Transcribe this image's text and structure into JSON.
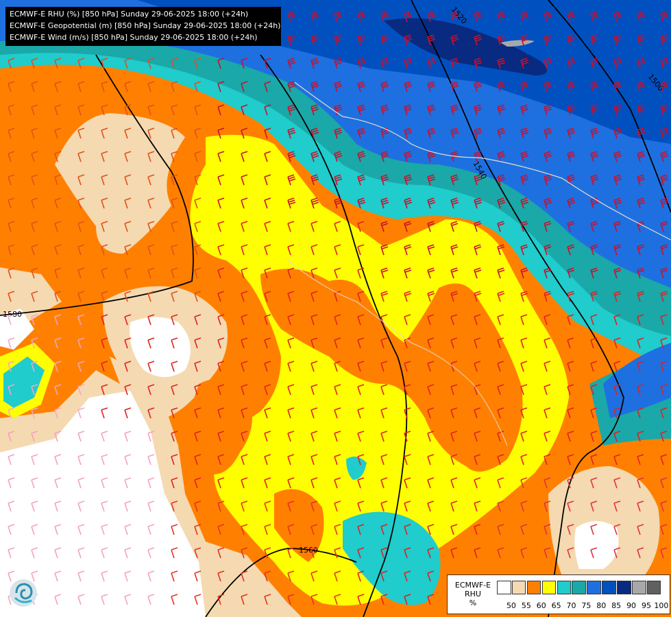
{
  "title_lines": [
    "ECMWF-E RHU (%) [850 hPa] Sunday 29-06-2025 18:00 (+24h)",
    "ECMWF-E Geopotential (m) [850 hPa] Sunday 29-06-2025 18:00 (+24h)",
    "ECMWF-E Wind (m/s) [850 hPa] Sunday 29-06-2025 18:00 (+24h)"
  ],
  "contours": {
    "c1520": "1520",
    "c1500": "1500",
    "c1540": "1540",
    "c1580": "1580",
    "c1560": "1560"
  },
  "legend": {
    "title_line1": "ECMWF-E",
    "title_line2": "RHU",
    "unit": "%",
    "labels": [
      "50",
      "55",
      "60",
      "65",
      "70",
      "75",
      "80",
      "85",
      "90",
      "95",
      "100"
    ],
    "colors": [
      "#ffffff",
      "#f5d9b0",
      "#ff8000",
      "#ffff00",
      "#20cccc",
      "#1aa8a8",
      "#1e70e0",
      "#0050c0",
      "#082a80",
      "#a8a8a8",
      "#606060"
    ]
  },
  "colors": {
    "white": "#ffffff",
    "tan": "#f5d9b0",
    "orange": "#ff8000",
    "yellow": "#ffff00",
    "cyan": "#20cccc",
    "teal": "#1aa8a8",
    "blue": "#1e70e0",
    "darkblue": "#0050c0",
    "navy": "#082a80"
  },
  "logo_name": "ecmwf-logo-icon"
}
